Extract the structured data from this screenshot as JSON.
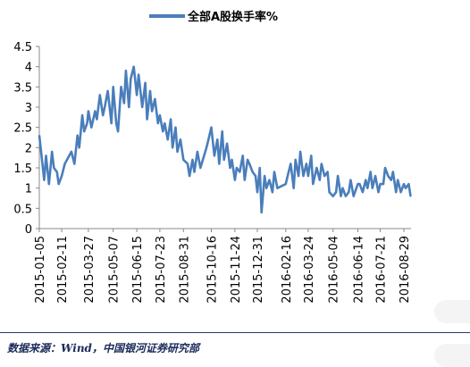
{
  "chart_data": {
    "type": "line",
    "title": "",
    "xlabel": "",
    "ylabel": "",
    "ylim": [
      0,
      4.5
    ],
    "yticks": [
      "0",
      "0.5",
      "1",
      "1.5",
      "2",
      "2.5",
      "3",
      "3.5",
      "4",
      "4.5"
    ],
    "xticks": [
      "2015-01-05",
      "2015-02-11",
      "2015-03-27",
      "2015-05-07",
      "2015-06-15",
      "2015-07-23",
      "2015-08-31",
      "2015-10-16",
      "2015-11-24",
      "2015-12-31",
      "2016-02-16",
      "2016-03-24",
      "2016-05-04",
      "2016-06-14",
      "2016-07-21",
      "2016-08-29"
    ],
    "legend_position": "top",
    "grid": false,
    "series": [
      {
        "name": "全部A股换手率%",
        "color": "#4a7ebb",
        "x": [
          "2015-01-05",
          "2015-01-08",
          "2015-01-13",
          "2015-01-16",
          "2015-01-21",
          "2015-01-26",
          "2015-01-29",
          "2015-02-03",
          "2015-02-06",
          "2015-02-11",
          "2015-02-16",
          "2015-02-27",
          "2015-03-04",
          "2015-03-09",
          "2015-03-12",
          "2015-03-17",
          "2015-03-20",
          "2015-03-25",
          "2015-03-27",
          "2015-04-01",
          "2015-04-07",
          "2015-04-10",
          "2015-04-15",
          "2015-04-20",
          "2015-04-23",
          "2015-04-28",
          "2015-05-04",
          "2015-05-07",
          "2015-05-12",
          "2015-05-15",
          "2015-05-20",
          "2015-05-25",
          "2015-05-28",
          "2015-06-02",
          "2015-06-05",
          "2015-06-10",
          "2015-06-15",
          "2015-06-18",
          "2015-06-24",
          "2015-06-29",
          "2015-07-02",
          "2015-07-07",
          "2015-07-10",
          "2015-07-15",
          "2015-07-20",
          "2015-07-23",
          "2015-07-28",
          "2015-07-31",
          "2015-08-05",
          "2015-08-10",
          "2015-08-13",
          "2015-08-18",
          "2015-08-21",
          "2015-08-26",
          "2015-08-31",
          "2015-09-07",
          "2015-09-10",
          "2015-09-15",
          "2015-09-18",
          "2015-09-23",
          "2015-09-28",
          "2015-10-08",
          "2015-10-13",
          "2015-10-16",
          "2015-10-21",
          "2015-10-26",
          "2015-10-29",
          "2015-11-03",
          "2015-11-06",
          "2015-11-11",
          "2015-11-16",
          "2015-11-19",
          "2015-11-24",
          "2015-11-27",
          "2015-12-02",
          "2015-12-07",
          "2015-12-10",
          "2015-12-15",
          "2015-12-18",
          "2015-12-23",
          "2015-12-28",
          "2015-12-31",
          "2016-01-04",
          "2016-01-07",
          "2016-01-12",
          "2016-01-15",
          "2016-01-20",
          "2016-01-25",
          "2016-01-28",
          "2016-02-02",
          "2016-02-16",
          "2016-02-19",
          "2016-02-24",
          "2016-02-29",
          "2016-03-03",
          "2016-03-08",
          "2016-03-11",
          "2016-03-16",
          "2016-03-21",
          "2016-03-24",
          "2016-03-29",
          "2016-04-01",
          "2016-04-07",
          "2016-04-12",
          "2016-04-15",
          "2016-04-20",
          "2016-04-25",
          "2016-04-28",
          "2016-05-04",
          "2016-05-09",
          "2016-05-12",
          "2016-05-17",
          "2016-05-20",
          "2016-05-25",
          "2016-05-30",
          "2016-06-02",
          "2016-06-07",
          "2016-06-14",
          "2016-06-17",
          "2016-06-22",
          "2016-06-27",
          "2016-06-30",
          "2016-07-05",
          "2016-07-08",
          "2016-07-13",
          "2016-07-18",
          "2016-07-21",
          "2016-07-26",
          "2016-07-29",
          "2016-08-03",
          "2016-08-08",
          "2016-08-11",
          "2016-08-16",
          "2016-08-19",
          "2016-08-24",
          "2016-08-29",
          "2016-09-01",
          "2016-09-06",
          "2016-09-09"
        ],
        "values": [
          2.3,
          1.9,
          1.2,
          1.8,
          1.1,
          1.9,
          1.5,
          1.4,
          1.1,
          1.3,
          1.6,
          1.9,
          1.6,
          2.3,
          2.0,
          2.8,
          2.4,
          2.6,
          2.9,
          2.5,
          2.9,
          2.7,
          3.3,
          2.8,
          3.0,
          3.4,
          2.6,
          3.5,
          2.6,
          2.4,
          3.5,
          3.1,
          3.9,
          3.0,
          3.7,
          4.0,
          3.3,
          3.8,
          3.0,
          3.6,
          2.7,
          3.4,
          2.9,
          3.2,
          2.6,
          2.8,
          2.4,
          2.6,
          2.2,
          2.7,
          2.0,
          2.5,
          1.9,
          2.2,
          1.7,
          1.6,
          1.3,
          1.7,
          1.4,
          1.9,
          1.5,
          2.0,
          2.3,
          2.5,
          1.8,
          2.2,
          1.6,
          2.4,
          1.7,
          2.1,
          1.5,
          1.7,
          1.2,
          1.5,
          1.4,
          1.8,
          1.2,
          1.7,
          1.6,
          1.4,
          1.3,
          0.9,
          1.5,
          0.4,
          1.3,
          1.0,
          1.2,
          0.9,
          1.4,
          1.0,
          1.1,
          1.3,
          1.6,
          1.0,
          1.7,
          1.3,
          1.9,
          1.3,
          1.6,
          1.3,
          1.8,
          1.1,
          1.5,
          1.2,
          1.6,
          1.3,
          1.4,
          0.9,
          0.8,
          0.9,
          1.3,
          0.8,
          1.0,
          0.8,
          0.9,
          1.2,
          0.8,
          1.1,
          1.1,
          0.9,
          1.2,
          1.0,
          1.4,
          1.0,
          1.3,
          0.9,
          1.1,
          1.1,
          1.5,
          1.3,
          1.2,
          1.4,
          0.9,
          1.2,
          0.9,
          1.1,
          1.0,
          1.1,
          0.8
        ]
      }
    ]
  },
  "source": "数据来源：Wind，中国银河证券研究部"
}
